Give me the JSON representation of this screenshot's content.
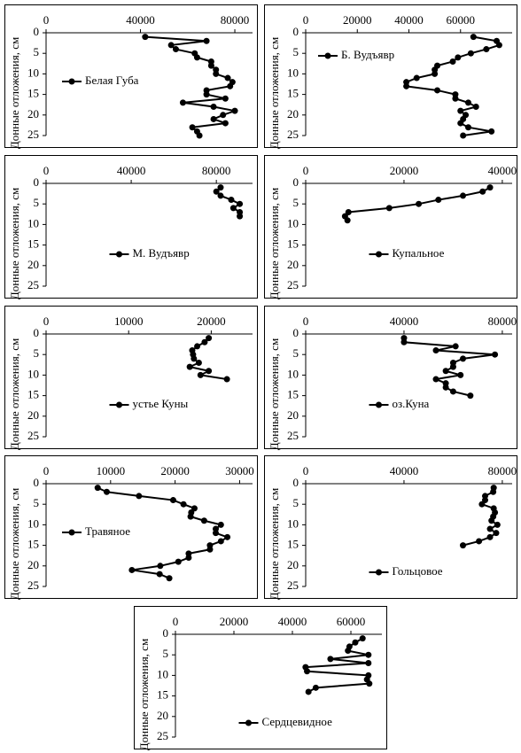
{
  "chart_data": [
    {
      "type": "line",
      "y_label": "Донные отложения, см",
      "xlim": [
        0,
        87500
      ],
      "xticks": [
        0,
        40000,
        80000
      ],
      "ylim": [
        0,
        25
      ],
      "yticks": [
        0,
        5,
        10,
        15,
        20,
        25
      ],
      "legend": "center left",
      "y": [
        1,
        2,
        3,
        4,
        5,
        6,
        7,
        8,
        9,
        10,
        11,
        12,
        13,
        14,
        15,
        16,
        17,
        18,
        19,
        20,
        21,
        22,
        23,
        24,
        25
      ],
      "series": [
        {
          "name": "Белая Губа",
          "color": "#000000",
          "values": [
            42000,
            68000,
            53000,
            55000,
            63000,
            64000,
            70000,
            70000,
            72000,
            72000,
            77000,
            79000,
            78000,
            68000,
            68000,
            76000,
            58000,
            71000,
            80000,
            75000,
            71000,
            76000,
            62000,
            64000,
            65000
          ]
        }
      ]
    },
    {
      "type": "line",
      "y_label": "Донные отложения, см",
      "xlim": [
        0,
        80000
      ],
      "xticks": [
        0,
        20000,
        40000,
        60000
      ],
      "ylim": [
        0,
        25
      ],
      "yticks": [
        0,
        5,
        10,
        15,
        20,
        25
      ],
      "legend": "upper left",
      "y": [
        1,
        2,
        3,
        4,
        5,
        6,
        7,
        8,
        9,
        10,
        11,
        12,
        13,
        14,
        15,
        16,
        17,
        18,
        19,
        20,
        21,
        22,
        23,
        24,
        25
      ],
      "series": [
        {
          "name": "Б. Вудъявр",
          "color": "#000000",
          "values": [
            65000,
            74000,
            75000,
            70000,
            64000,
            59000,
            57000,
            51000,
            50000,
            50000,
            43000,
            39000,
            39000,
            51000,
            58000,
            58000,
            63000,
            66000,
            60000,
            62000,
            61000,
            60000,
            63000,
            72000,
            61000
          ]
        }
      ]
    },
    {
      "type": "line",
      "y_label": "Донные отложения, см",
      "xlim": [
        0,
        97000
      ],
      "xticks": [
        0,
        40000,
        80000
      ],
      "ylim": [
        0,
        25
      ],
      "yticks": [
        0,
        5,
        10,
        15,
        20,
        25
      ],
      "legend": "lower center",
      "y": [
        1,
        2,
        3,
        4,
        5,
        6,
        7,
        8
      ],
      "series": [
        {
          "name": "М. Вудъявр",
          "color": "#000000",
          "values": [
            82000,
            80000,
            82000,
            87000,
            91000,
            88000,
            91000,
            91000
          ]
        }
      ]
    },
    {
      "type": "line",
      "y_label": "Донные отложения, см",
      "xlim": [
        0,
        42000
      ],
      "xticks": [
        0,
        20000,
        40000
      ],
      "ylim": [
        0,
        25
      ],
      "yticks": [
        0,
        5,
        10,
        15,
        20,
        25
      ],
      "legend": "lower center",
      "y": [
        1,
        2,
        3,
        4,
        5,
        6,
        7,
        8,
        9
      ],
      "series": [
        {
          "name": "Купальное",
          "color": "#000000",
          "values": [
            37500,
            36000,
            32000,
            27000,
            23000,
            17000,
            8700,
            8000,
            8500
          ]
        }
      ]
    },
    {
      "type": "line",
      "y_label": "Донные отложения, см",
      "xlim": [
        0,
        25000
      ],
      "xticks": [
        0,
        10000,
        20000
      ],
      "ylim": [
        0,
        25
      ],
      "yticks": [
        0,
        5,
        10,
        15,
        20,
        25
      ],
      "legend": "lower center",
      "y": [
        1,
        2,
        3,
        4,
        5,
        6,
        7,
        8,
        9,
        10,
        11
      ],
      "series": [
        {
          "name": "устье Куны",
          "color": "#000000",
          "values": [
            19700,
            19200,
            18300,
            17700,
            17800,
            17900,
            18500,
            17400,
            19700,
            18700,
            21900
          ]
        }
      ]
    },
    {
      "type": "line",
      "y_label": "Донные отложения, см",
      "xlim": [
        0,
        84000
      ],
      "xticks": [
        0,
        40000,
        80000
      ],
      "ylim": [
        0,
        25
      ],
      "yticks": [
        0,
        5,
        10,
        15,
        20,
        25
      ],
      "legend": "lower center",
      "y": [
        1,
        2,
        3,
        4,
        5,
        6,
        7,
        8,
        9,
        10,
        11,
        12,
        13,
        14,
        15
      ],
      "series": [
        {
          "name": "оз.Куна",
          "color": "#000000",
          "values": [
            40000,
            40000,
            61000,
            53000,
            77000,
            64000,
            60000,
            60000,
            57000,
            63000,
            53000,
            57000,
            57000,
            60000,
            67000
          ]
        }
      ]
    },
    {
      "type": "line",
      "y_label": "Донные отложения, см",
      "xlim": [
        0,
        32000
      ],
      "xticks": [
        0,
        10000,
        20000,
        30000
      ],
      "ylim": [
        0,
        25
      ],
      "yticks": [
        0,
        5,
        10,
        15,
        20,
        25
      ],
      "legend": "center left",
      "y": [
        1,
        2,
        3,
        4,
        5,
        6,
        7,
        8,
        9,
        10,
        11,
        12,
        13,
        14,
        15,
        16,
        17,
        18,
        19,
        20,
        21,
        22,
        23
      ],
      "series": [
        {
          "name": "Травяное",
          "color": "#000000",
          "values": [
            8000,
            9400,
            14400,
            19700,
            21300,
            23000,
            22500,
            22400,
            24500,
            27100,
            26300,
            26300,
            28100,
            27100,
            25400,
            25400,
            22100,
            22100,
            20500,
            17700,
            13300,
            17600,
            19100
          ]
        }
      ]
    },
    {
      "type": "line",
      "y_label": "Донные отложения, см",
      "xlim": [
        0,
        84000
      ],
      "xticks": [
        0,
        40000,
        80000
      ],
      "ylim": [
        0,
        25
      ],
      "yticks": [
        0,
        5,
        10,
        15,
        20,
        25
      ],
      "legend": "bottom center",
      "y": [
        1,
        2,
        3,
        4,
        5,
        6,
        7,
        8,
        9,
        10,
        11,
        12,
        13,
        14,
        15
      ],
      "series": [
        {
          "name": "Гольцовое",
          "color": "#000000",
          "values": [
            76500,
            76300,
            73000,
            73000,
            71700,
            76500,
            77000,
            76300,
            75600,
            78000,
            75000,
            77500,
            75000,
            70500,
            64000
          ]
        }
      ]
    },
    {
      "type": "line",
      "y_label": "Донные отложения, см",
      "xlim": [
        0,
        70600
      ],
      "xticks": [
        0,
        20000,
        40000,
        60000
      ],
      "ylim": [
        0,
        25
      ],
      "yticks": [
        0,
        5,
        10,
        15,
        20,
        25
      ],
      "legend": "bottom center",
      "y": [
        1,
        2,
        3,
        4,
        5,
        6,
        7,
        8,
        9,
        10,
        11,
        12,
        13,
        14
      ],
      "series": [
        {
          "name": "Сердцевидное",
          "color": "#000000",
          "values": [
            64000,
            61500,
            59500,
            59000,
            66000,
            53000,
            66000,
            44500,
            45000,
            66000,
            65500,
            66300,
            48000,
            45500
          ]
        }
      ]
    }
  ]
}
